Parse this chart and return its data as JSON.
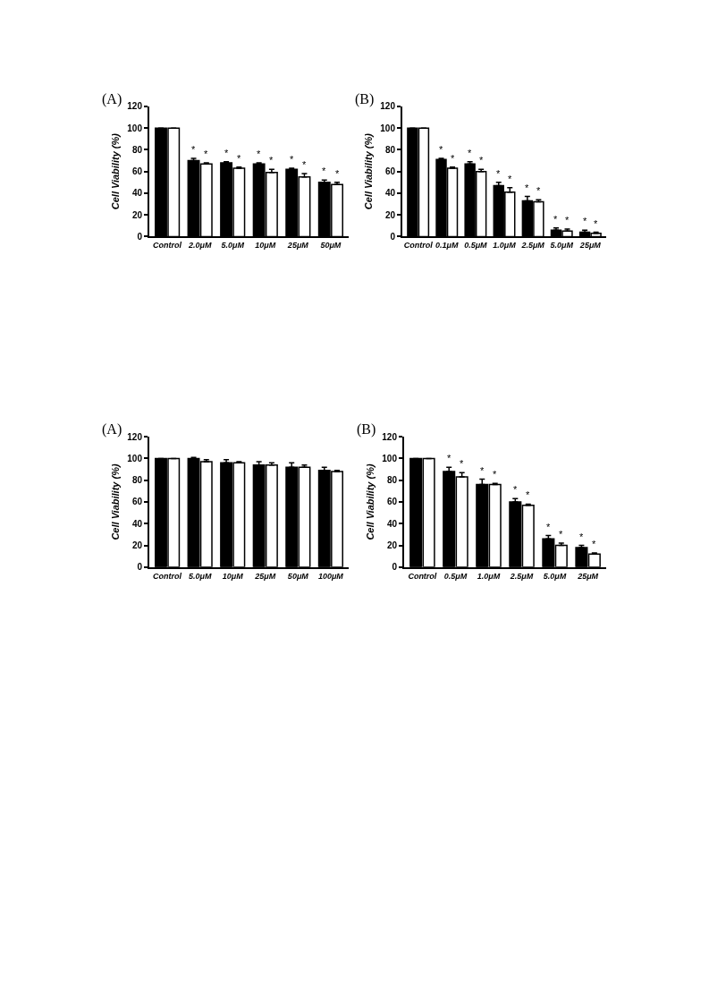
{
  "chart_data": [
    {
      "type": "bar",
      "title": "(A)",
      "ylabel": "Cell Viability (%)",
      "categories": [
        "Control",
        "2.0μM",
        "5.0μM",
        "10μM",
        "25μM",
        "50μM"
      ],
      "ylim": [
        0,
        120
      ],
      "yticks": [
        0,
        20,
        40,
        60,
        80,
        100,
        120
      ],
      "grid": false,
      "series": [
        {
          "color": "#000000",
          "values": [
            100,
            70,
            68,
            67,
            62,
            50
          ],
          "errors": [
            null,
            [
              70,
              72
            ],
            [
              68,
              69
            ],
            [
              67,
              68
            ],
            [
              62,
              63
            ],
            [
              50,
              52
            ]
          ],
          "value_labels": [
            null,
            "*",
            "*",
            "*",
            "*",
            "*"
          ]
        },
        {
          "color": "#ffffff",
          "values": [
            100,
            67,
            63,
            59,
            55,
            48
          ],
          "errors": [
            null,
            [
              67,
              68
            ],
            [
              63,
              64
            ],
            [
              59,
              62
            ],
            [
              55,
              58
            ],
            [
              48,
              50
            ]
          ],
          "value_labels": [
            null,
            "*",
            "*",
            "*",
            "*",
            "*"
          ]
        }
      ]
    },
    {
      "type": "bar",
      "title": "(B)",
      "ylabel": "Cell Viability (%)",
      "categories": [
        "Control",
        "0.1μM",
        "0.5μM",
        "1.0μM",
        "2.5μM",
        "5.0μM",
        "25μM"
      ],
      "ylim": [
        0,
        120
      ],
      "yticks": [
        0,
        20,
        40,
        60,
        80,
        100,
        120
      ],
      "grid": false,
      "series": [
        {
          "color": "#000000",
          "values": [
            100,
            71,
            67,
            47,
            33,
            6,
            4
          ],
          "errors": [
            null,
            [
              71,
              72
            ],
            [
              67,
              69
            ],
            [
              47,
              50
            ],
            [
              33,
              37
            ],
            [
              6,
              8
            ],
            [
              4,
              6
            ]
          ],
          "value_labels": [
            null,
            "*",
            "*",
            "*",
            "*",
            "*",
            "*"
          ]
        },
        {
          "color": "#ffffff",
          "values": [
            100,
            63,
            60,
            41,
            32,
            5,
            3
          ],
          "errors": [
            null,
            [
              63,
              64
            ],
            [
              60,
              62
            ],
            [
              41,
              45
            ],
            [
              32,
              34
            ],
            [
              5,
              7
            ],
            [
              3,
              4
            ]
          ],
          "value_labels": [
            null,
            "*",
            "*",
            "*",
            "*",
            "*",
            "*"
          ]
        }
      ]
    },
    {
      "type": "bar",
      "title": "(A)",
      "ylabel": "Cell Viability (%)",
      "categories": [
        "Control",
        "5.0μM",
        "10μM",
        "25μM",
        "50μM",
        "100μM"
      ],
      "ylim": [
        0,
        120
      ],
      "yticks": [
        0,
        20,
        40,
        60,
        80,
        100,
        120
      ],
      "grid": false,
      "series": [
        {
          "color": "#000000",
          "values": [
            100,
            100,
            96,
            94,
            92,
            89
          ],
          "errors": [
            null,
            [
              100,
              101
            ],
            [
              96,
              99
            ],
            [
              94,
              97
            ],
            [
              92,
              96
            ],
            [
              89,
              92
            ]
          ]
        },
        {
          "color": "#ffffff",
          "values": [
            100,
            97,
            96,
            94,
            92,
            88
          ],
          "errors": [
            null,
            [
              97,
              99
            ],
            [
              96,
              97
            ],
            [
              94,
              96
            ],
            [
              92,
              94
            ],
            [
              88,
              89
            ]
          ]
        }
      ]
    },
    {
      "type": "bar",
      "title": "(B)",
      "ylabel": "Cell Viability (%)",
      "categories": [
        "Control",
        "0.5μM",
        "1.0μM",
        "2.5μM",
        "5.0μM",
        "25μM"
      ],
      "ylim": [
        0,
        120
      ],
      "yticks": [
        0,
        20,
        40,
        60,
        80,
        100,
        120
      ],
      "grid": false,
      "series": [
        {
          "color": "#000000",
          "values": [
            100,
            88,
            76,
            60,
            26,
            18
          ],
          "errors": [
            null,
            [
              88,
              92
            ],
            [
              76,
              81
            ],
            [
              60,
              63
            ],
            [
              26,
              29
            ],
            [
              18,
              20
            ]
          ],
          "value_labels": [
            null,
            "*",
            "*",
            "*",
            "*",
            "*"
          ]
        },
        {
          "color": "#ffffff",
          "values": [
            100,
            83,
            76,
            57,
            20,
            12
          ],
          "errors": [
            null,
            [
              83,
              87
            ],
            [
              76,
              77
            ],
            [
              57,
              58
            ],
            [
              20,
              22
            ],
            [
              12,
              13
            ]
          ],
          "value_labels": [
            null,
            "*",
            "*",
            "*",
            "*",
            "*"
          ]
        }
      ]
    }
  ]
}
